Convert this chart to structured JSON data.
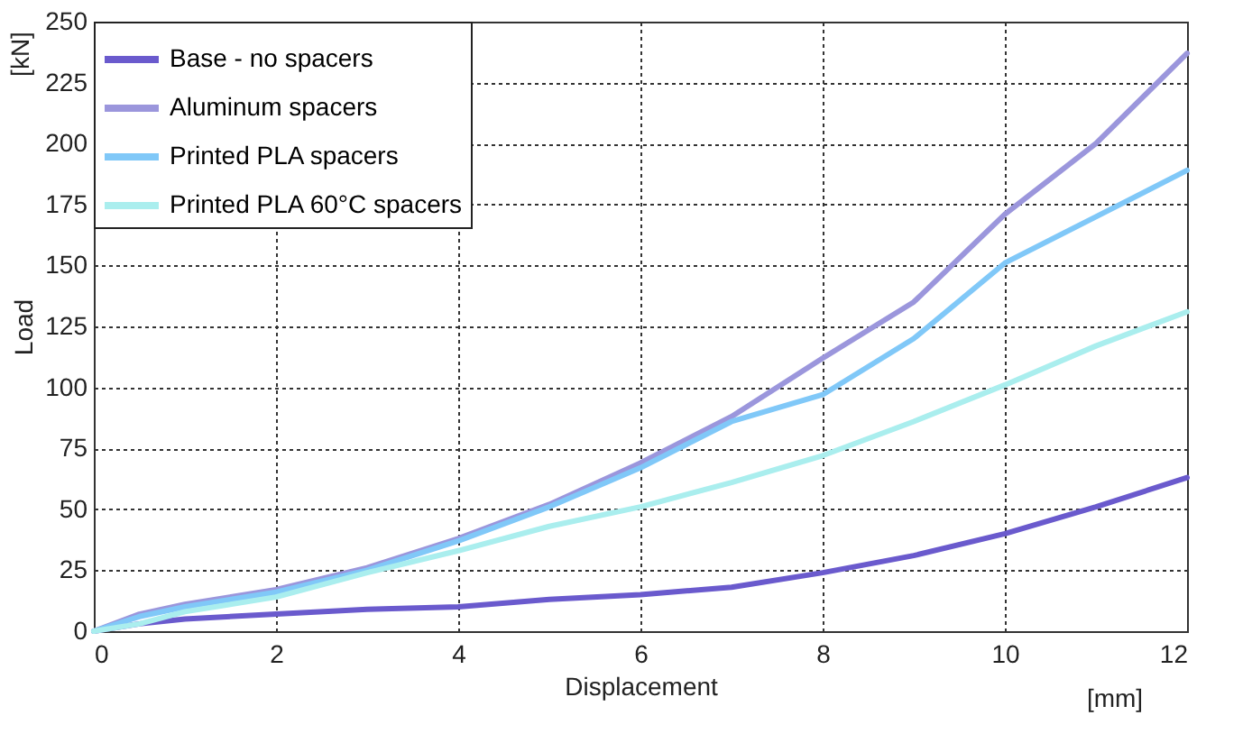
{
  "chart_data": {
    "type": "line",
    "xlabel": "Displacement",
    "ylabel": "Load",
    "annotations": [
      "[kN]",
      "[mm]"
    ],
    "xlim": [
      0,
      12
    ],
    "xticks": [
      0,
      2,
      4,
      6,
      8,
      10,
      12
    ],
    "ylim": [
      0,
      250
    ],
    "yticks": [
      0,
      25,
      50,
      75,
      100,
      125,
      150,
      175,
      200,
      225,
      250
    ],
    "grid": true,
    "legend": "top left",
    "line_style": "solid",
    "marker": "none",
    "x": [
      0,
      0.5,
      1,
      2,
      3,
      4,
      5,
      6,
      7,
      8,
      9,
      10,
      11,
      12
    ],
    "series": [
      {
        "name": "Base - no spacers",
        "color": "#6a5acd",
        "values": [
          0,
          3,
          5,
          7,
          9,
          10,
          13,
          15,
          18,
          24,
          31,
          40,
          51,
          63
        ]
      },
      {
        "name": "Aluminum spacers",
        "color": "#9b96dc",
        "values": [
          0,
          7,
          11,
          17,
          26,
          38,
          52,
          69,
          88,
          112,
          135,
          171,
          200,
          237
        ]
      },
      {
        "name": "Printed PLA spacers",
        "color": "#80c8f8",
        "values": [
          0,
          6,
          10,
          16,
          25,
          37,
          51,
          67,
          86,
          97,
          120,
          151,
          170,
          189
        ]
      },
      {
        "name": "Printed PLA 60°C spacers",
        "color": "#aaeeee",
        "values": [
          0,
          3,
          8,
          14,
          24,
          33,
          43,
          51,
          61,
          72,
          86,
          101,
          117,
          131
        ]
      }
    ]
  }
}
